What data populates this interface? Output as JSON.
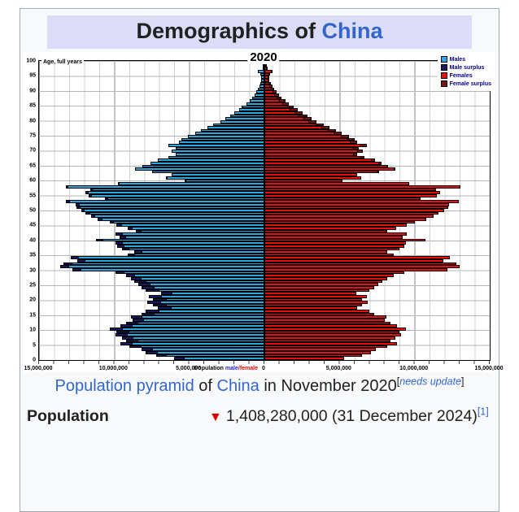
{
  "infobox": {
    "title": {
      "prefix": "Demographics of ",
      "link": "China"
    },
    "caption": {
      "link1": "Population pyramid",
      "mid": " of ",
      "link2": "China",
      "tail": " in November 2020",
      "flag_open": "[",
      "flag_text": "needs update",
      "flag_close": "]"
    },
    "population": {
      "label": "Population",
      "trend_icon": "▼",
      "value": "1,408,280,000 (31 December 2024)",
      "ref": "[1]"
    }
  },
  "chart_data": {
    "type": "bar",
    "title": "2020",
    "orientation": "population-pyramid",
    "unit": "millions of persons per single year of age",
    "axis_label_age": "Age, full years",
    "axis_label_population": "Population",
    "axis_label_male": "male",
    "axis_label_separator": "/",
    "axis_label_female": "female",
    "axis_zero": "0",
    "x_max_millions": 15,
    "x_tick_percents": [
      0,
      16.667,
      33.333,
      50,
      66.667,
      83.333,
      100
    ],
    "x_tick_labels": [
      "15,000,000",
      "10,000,000",
      "5,000,000",
      "0",
      "5,000,000",
      "10,000,000",
      "15,000,000"
    ],
    "y_ticks": [
      0,
      5,
      10,
      15,
      20,
      25,
      30,
      35,
      40,
      45,
      50,
      55,
      60,
      65,
      70,
      75,
      80,
      85,
      90,
      95,
      100
    ],
    "grid": true,
    "legend_position": "top-right",
    "legend": [
      {
        "label": "Males",
        "color": "#2BA6DE"
      },
      {
        "label": "Male surplus",
        "color": "#191960"
      },
      {
        "label": "Females",
        "color": "#E80F0F"
      },
      {
        "label": "Female surplus",
        "color": "#7A1216"
      }
    ],
    "ages": [
      0,
      1,
      2,
      3,
      4,
      5,
      6,
      7,
      8,
      9,
      10,
      11,
      12,
      13,
      14,
      15,
      16,
      17,
      18,
      19,
      20,
      21,
      22,
      23,
      24,
      25,
      26,
      27,
      28,
      29,
      30,
      31,
      32,
      33,
      34,
      35,
      36,
      37,
      38,
      39,
      40,
      41,
      42,
      43,
      44,
      45,
      46,
      47,
      48,
      49,
      50,
      51,
      52,
      53,
      54,
      55,
      56,
      57,
      58,
      59,
      60,
      61,
      62,
      63,
      64,
      65,
      66,
      67,
      68,
      69,
      70,
      71,
      72,
      73,
      74,
      75,
      76,
      77,
      78,
      79,
      80,
      81,
      82,
      83,
      84,
      85,
      86,
      87,
      88,
      89,
      90,
      91,
      92,
      93,
      94,
      95,
      96,
      97,
      98,
      99,
      100
    ],
    "series": [
      {
        "name": "Males",
        "values": [
          6.0,
          7.2,
          7.9,
          8.2,
          9.0,
          9.6,
          9.2,
          9.5,
          9.9,
          9.85,
          10.3,
          9.6,
          9.2,
          8.8,
          8.9,
          8.2,
          7.9,
          7.1,
          7.4,
          7.8,
          7.4,
          7.7,
          6.9,
          7.9,
          8.2,
          8.4,
          8.65,
          8.9,
          9.2,
          9.9,
          12.8,
          13.6,
          13.4,
          12.45,
          12.9,
          9.1,
          8.65,
          9.5,
          9.8,
          9.9,
          11.2,
          9.65,
          9.9,
          8.55,
          9.1,
          9.85,
          10.3,
          11.1,
          11.55,
          11.9,
          12.2,
          12.5,
          12.55,
          13.2,
          10.6,
          11.7,
          11.9,
          11.6,
          13.2,
          9.75,
          5.25,
          6.5,
          6.2,
          7.5,
          8.6,
          8.1,
          7.6,
          7.1,
          6.4,
          5.9,
          6.2,
          5.9,
          6.4,
          5.7,
          5.5,
          5.1,
          4.6,
          4.2,
          3.8,
          3.4,
          2.9,
          2.6,
          2.3,
          2.0,
          1.7,
          1.5,
          1.2,
          1.0,
          0.8,
          0.65,
          0.55,
          0.45,
          0.35,
          0.28,
          0.22,
          0.2,
          0.25,
          0.45,
          0.1,
          0.05,
          0.03
        ]
      },
      {
        "name": "Females",
        "values": [
          5.3,
          6.5,
          7.1,
          7.4,
          8.2,
          8.8,
          8.4,
          8.7,
          9.1,
          9.0,
          9.4,
          8.8,
          8.4,
          8.0,
          8.1,
          7.3,
          7.0,
          6.2,
          6.5,
          6.9,
          6.5,
          6.8,
          6.1,
          7.0,
          7.3,
          7.6,
          7.85,
          8.2,
          8.6,
          9.3,
          12.2,
          13.0,
          12.8,
          11.9,
          12.35,
          8.6,
          8.15,
          9.0,
          9.3,
          9.4,
          10.7,
          9.2,
          9.45,
          8.2,
          8.75,
          9.5,
          10.0,
          10.8,
          11.25,
          11.6,
          11.95,
          12.25,
          12.3,
          12.95,
          10.4,
          11.5,
          11.7,
          11.45,
          13.05,
          9.65,
          5.2,
          6.45,
          6.2,
          7.55,
          8.7,
          8.25,
          7.8,
          7.35,
          6.65,
          6.2,
          6.55,
          6.3,
          6.85,
          6.15,
          6.0,
          5.65,
          5.15,
          4.75,
          4.35,
          3.95,
          3.45,
          3.15,
          2.85,
          2.55,
          2.2,
          1.95,
          1.65,
          1.4,
          1.15,
          0.95,
          0.8,
          0.65,
          0.52,
          0.42,
          0.33,
          0.3,
          0.37,
          0.55,
          0.16,
          0.08,
          0.05
        ]
      }
    ]
  }
}
